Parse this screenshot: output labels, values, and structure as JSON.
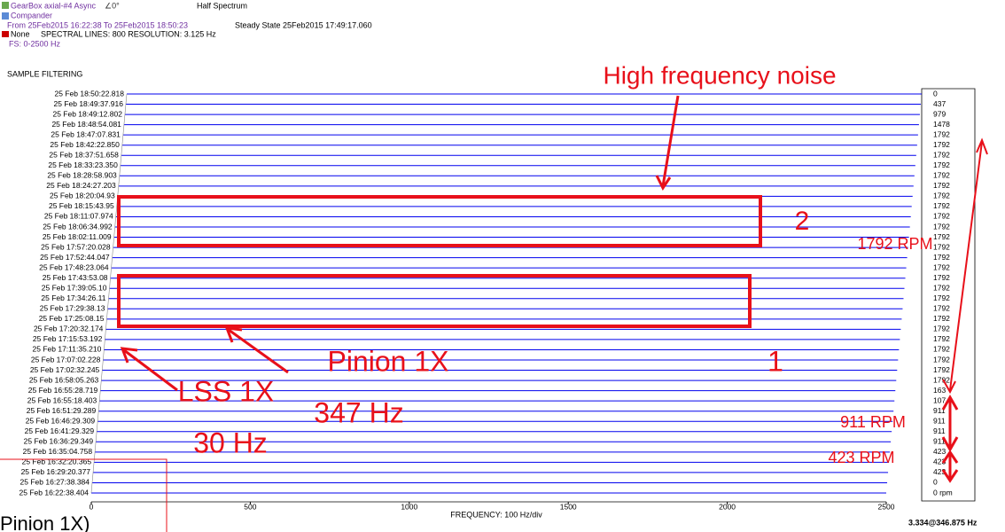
{
  "header": {
    "source": "GearBox axial-#4 Async",
    "angle": "∠0°",
    "mode": "Half Spectrum",
    "compander": "Compander",
    "range": "From 25Feb2015 16:22:38 To 25Feb2015 18:50:23",
    "state": "Steady State   25Feb2015 17:49:17.060",
    "window": "None",
    "lines": "SPECTRAL LINES: 800   RESOLUTION: 3.125 Hz",
    "fs": "FS: 0-2500 Hz",
    "filter": "SAMPLE FILTERING"
  },
  "chart_data": {
    "type": "waterfall",
    "xlabel": "FREQUENCY: 100 Hz/div",
    "xlim": [
      0,
      2500
    ],
    "xticks": [
      0,
      500,
      1000,
      1500,
      2000,
      2500
    ],
    "color": "#0000ee",
    "categories": [
      "25 Feb 18:50:22.818",
      "25 Feb 18:49:37.916",
      "25 Feb 18:49:12.802",
      "25 Feb 18:48:54.081",
      "25 Feb 18:47:07.831",
      "25 Feb 18:42:22.850",
      "25 Feb 18:37:51.658",
      "25 Feb 18:33:23.350",
      "25 Feb 18:28:58.903",
      "25 Feb 18:24:27.203",
      "25 Feb 18:20:04.93",
      "25 Feb 18:15:43.95",
      "25 Feb 18:11:07.974",
      "25 Feb 18:06:34.992",
      "25 Feb 18:02:11.009",
      "25 Feb 17:57:20.028",
      "25 Feb 17:52:44.047",
      "25 Feb 17:48:23.064",
      "25 Feb 17:43:53.08",
      "25 Feb 17:39:05.10",
      "25 Feb 17:34:26.11",
      "25 Feb 17:29:38.13",
      "25 Feb 17:25:08.15",
      "25 Feb 17:20:32.174",
      "25 Feb 17:15:53.192",
      "25 Feb 17:11:35.210",
      "25 Feb 17:07:02.228",
      "25 Feb 17:02:32.245",
      "25 Feb 16:58:05.263",
      "25 Feb 16:55:28.719",
      "25 Feb 16:55:18.403",
      "25 Feb 16:51:29.289",
      "25 Feb 16:46:29.309",
      "25 Feb 16:41:29.329",
      "25 Feb 16:36:29.349",
      "25 Feb 16:35:04.758",
      "25 Feb 16:32:20.365",
      "25 Feb 16:29:20.377",
      "25 Feb 16:27:38.384",
      "25 Feb 16:22:38.404"
    ],
    "rpm_labels": [
      "0",
      "437",
      "979",
      "1478",
      "1792",
      "1792",
      "1792",
      "1792",
      "1792",
      "1792",
      "1792",
      "1792",
      "1792",
      "1792",
      "1792",
      "1792",
      "1792",
      "1792",
      "1792",
      "1792",
      "1792",
      "1792",
      "1792",
      "1792",
      "1792",
      "1792",
      "1792",
      "1792",
      "1792",
      "163",
      "107",
      "911",
      "911",
      "911",
      "911",
      "423",
      "423",
      "423",
      "0",
      "0 rpm"
    ],
    "cursor": "3.334@346.875 Hz",
    "annotations": {
      "noise": "High frequency noise",
      "box2": "2",
      "box1": "1",
      "rpm1792": "1792 RPM",
      "rpm911": "911 RPM",
      "rpm423": "423 RPM",
      "pinion": "Pinion 1X",
      "pinion_hz": "347 Hz",
      "lss": "LSS 1X",
      "lss_hz": "30 Hz",
      "cut": "Pinion 1X)"
    }
  }
}
